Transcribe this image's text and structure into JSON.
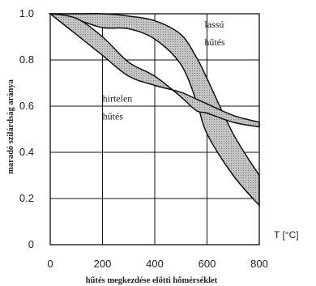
{
  "chart_data": {
    "type": "area",
    "title": "",
    "xlabel": "hűtés megkezdése előtti hőmérséklet",
    "ylabel": "maradó szilárdság aránya",
    "x_unit_label": "T [°C]",
    "xlim": [
      0,
      800
    ],
    "ylim": [
      0,
      1.0
    ],
    "x_ticks": [
      0,
      200,
      400,
      600,
      800
    ],
    "y_ticks": [
      0,
      0.2,
      0.4,
      0.6,
      0.8,
      1.0
    ],
    "x_tick_labels": [
      "0",
      "200",
      "400",
      "600",
      "800"
    ],
    "y_tick_labels": [
      "0",
      "0.2",
      "0.4",
      "0.6",
      "0.8",
      "1.0"
    ],
    "grid": true,
    "series": [
      {
        "name": "lassú hűtés",
        "upper": {
          "x": [
            0,
            100,
            200,
            300,
            400,
            500,
            560,
            600,
            700,
            800
          ],
          "y": [
            1.0,
            1.0,
            1.0,
            0.99,
            0.97,
            0.91,
            0.81,
            0.72,
            0.48,
            0.3
          ]
        },
        "lower": {
          "x": [
            0,
            100,
            200,
            300,
            400,
            500,
            560,
            600,
            700,
            800
          ],
          "y": [
            1.0,
            0.975,
            0.94,
            0.935,
            0.89,
            0.78,
            0.62,
            0.48,
            0.3,
            0.17
          ]
        }
      },
      {
        "name": "hirtelen hűtés",
        "upper": {
          "x": [
            0,
            100,
            200,
            300,
            400,
            500,
            560,
            600,
            700,
            800
          ],
          "y": [
            1.0,
            0.98,
            0.9,
            0.79,
            0.73,
            0.64,
            0.58,
            0.57,
            0.53,
            0.51
          ]
        },
        "lower": {
          "x": [
            0,
            100,
            200,
            300,
            400,
            500,
            560,
            600,
            700,
            800
          ],
          "y": [
            1.0,
            0.91,
            0.82,
            0.73,
            0.69,
            0.66,
            0.63,
            0.61,
            0.56,
            0.53
          ]
        }
      }
    ],
    "annotations": [
      {
        "text_lines": [
          "lassú",
          "hűtés"
        ],
        "x": 640,
        "y": 0.94
      },
      {
        "text_lines": [
          "hirtelen",
          "hűtés"
        ],
        "x": 250,
        "y": 0.62
      }
    ]
  }
}
